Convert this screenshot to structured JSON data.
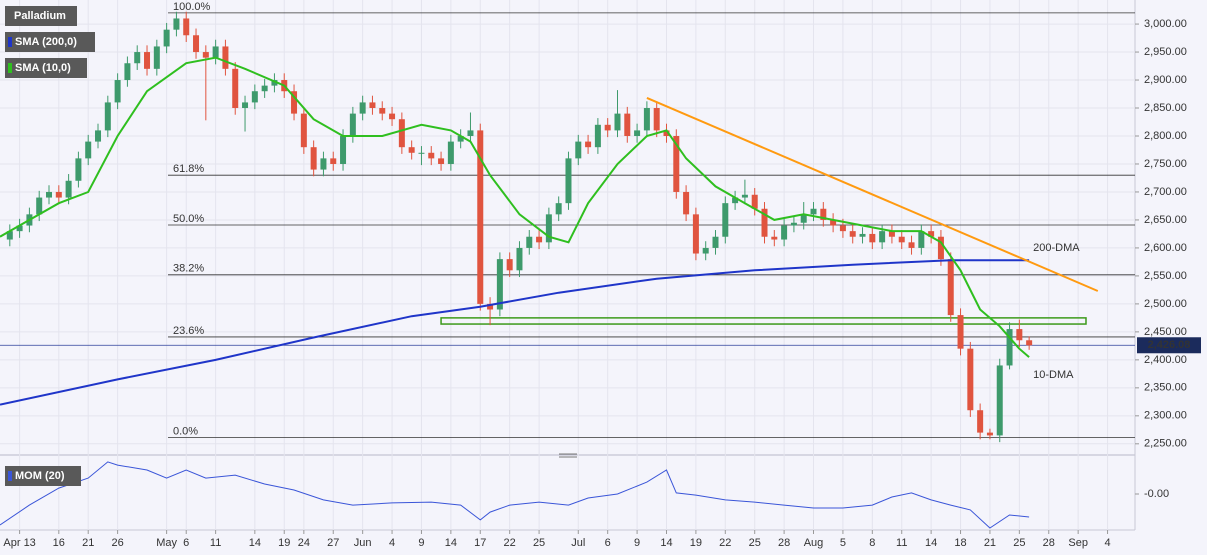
{
  "chart_data": {
    "type": "candlestick",
    "title": "Palladium",
    "xlim": [
      -2,
      113.8
    ],
    "ylim": [
      2230,
      3043
    ],
    "xticks": [
      {
        "value": 0,
        "label": "Apr 13"
      },
      {
        "value": 4,
        "label": "16"
      },
      {
        "value": 7,
        "label": "21"
      },
      {
        "value": 10,
        "label": "26"
      },
      {
        "value": 15,
        "label": "May"
      },
      {
        "value": 17,
        "label": "6"
      },
      {
        "value": 20,
        "label": "11"
      },
      {
        "value": 24,
        "label": "14"
      },
      {
        "value": 27,
        "label": "19"
      },
      {
        "value": 29,
        "label": "24"
      },
      {
        "value": 32,
        "label": "27"
      },
      {
        "value": 35,
        "label": "Jun"
      },
      {
        "value": 38,
        "label": "4"
      },
      {
        "value": 41,
        "label": "9"
      },
      {
        "value": 44,
        "label": "14"
      },
      {
        "value": 47,
        "label": "17"
      },
      {
        "value": 50,
        "label": "22"
      },
      {
        "value": 53,
        "label": "25"
      },
      {
        "value": 57,
        "label": "Jul"
      },
      {
        "value": 60,
        "label": "6"
      },
      {
        "value": 63,
        "label": "9"
      },
      {
        "value": 66,
        "label": "14"
      },
      {
        "value": 69,
        "label": "19"
      },
      {
        "value": 72,
        "label": "22"
      },
      {
        "value": 75,
        "label": "25"
      },
      {
        "value": 78,
        "label": "28"
      },
      {
        "value": 81,
        "label": "Aug"
      },
      {
        "value": 84,
        "label": "5"
      },
      {
        "value": 87,
        "label": "8"
      },
      {
        "value": 90,
        "label": "11"
      },
      {
        "value": 93,
        "label": "14"
      },
      {
        "value": 96,
        "label": "18"
      },
      {
        "value": 99,
        "label": "21"
      },
      {
        "value": 102,
        "label": "25"
      },
      {
        "value": 105,
        "label": "28"
      },
      {
        "value": 108,
        "label": "Sep"
      },
      {
        "value": 111,
        "label": "4"
      }
    ],
    "yticks": [
      {
        "value": 2250,
        "label": "2,250.00"
      },
      {
        "value": 2300,
        "label": "2,300.00"
      },
      {
        "value": 2350,
        "label": "2,350.00"
      },
      {
        "value": 2400,
        "label": "2,400.00"
      },
      {
        "value": 2450,
        "label": "2,450.00"
      },
      {
        "value": 2500,
        "label": "2,500.00"
      },
      {
        "value": 2550,
        "label": "2,550.00"
      },
      {
        "value": 2600,
        "label": "2,600.00"
      },
      {
        "value": 2650,
        "label": "2,650.00"
      },
      {
        "value": 2700,
        "label": "2,700.00"
      },
      {
        "value": 2750,
        "label": "2,750.00"
      },
      {
        "value": 2800,
        "label": "2,800.00"
      },
      {
        "value": 2850,
        "label": "2,850.00"
      },
      {
        "value": 2900,
        "label": "2,900.00"
      },
      {
        "value": 2950,
        "label": "2,950.00"
      },
      {
        "value": 3000,
        "label": "3,000.00"
      }
    ],
    "candles": {
      "up_color": "#3e9a6c",
      "down_color": "#e0543f",
      "x": [
        -1,
        0,
        1,
        2,
        3,
        4,
        5,
        6,
        7,
        8,
        9,
        10,
        11,
        12,
        13,
        14,
        15,
        16,
        17,
        18,
        19,
        20,
        21,
        22,
        23,
        24,
        25,
        26,
        27,
        28,
        29,
        30,
        31,
        32,
        33,
        34,
        35,
        36,
        37,
        38,
        39,
        40,
        41,
        42,
        43,
        44,
        45,
        46,
        47,
        48,
        49,
        50,
        51,
        52,
        53,
        54,
        55,
        56,
        57,
        58,
        59,
        60,
        61,
        62,
        63,
        64,
        65,
        66,
        67,
        68,
        69,
        70,
        71,
        72,
        73,
        74,
        75,
        76,
        77,
        78,
        79,
        80,
        81,
        82,
        83,
        84,
        85,
        86,
        87,
        88,
        89,
        90,
        91,
        92,
        93,
        94,
        95,
        96,
        97,
        98,
        99,
        100,
        101,
        102,
        103
      ],
      "ohlc": [
        [
          2615,
          2642,
          2603,
          2630
        ],
        [
          2630,
          2652,
          2618,
          2640
        ],
        [
          2640,
          2672,
          2628,
          2660
        ],
        [
          2660,
          2702,
          2648,
          2690
        ],
        [
          2690,
          2712,
          2678,
          2700
        ],
        [
          2700,
          2712,
          2678,
          2690
        ],
        [
          2690,
          2732,
          2678,
          2720
        ],
        [
          2720,
          2772,
          2708,
          2760
        ],
        [
          2760,
          2802,
          2748,
          2790
        ],
        [
          2790,
          2822,
          2778,
          2810
        ],
        [
          2810,
          2872,
          2798,
          2860
        ],
        [
          2860,
          2912,
          2848,
          2900
        ],
        [
          2900,
          2942,
          2888,
          2930
        ],
        [
          2930,
          2962,
          2918,
          2950
        ],
        [
          2950,
          2962,
          2908,
          2920
        ],
        [
          2920,
          2972,
          2908,
          2960
        ],
        [
          2960,
          3002,
          2948,
          2990
        ],
        [
          2990,
          3022,
          2978,
          3010
        ],
        [
          3010,
          3022,
          2968,
          2980
        ],
        [
          2980,
          2992,
          2938,
          2950
        ],
        [
          2950,
          2962,
          2828,
          2940
        ],
        [
          2940,
          2972,
          2928,
          2960
        ],
        [
          2960,
          2972,
          2908,
          2920
        ],
        [
          2920,
          2932,
          2838,
          2850
        ],
        [
          2850,
          2872,
          2808,
          2860
        ],
        [
          2860,
          2892,
          2848,
          2880
        ],
        [
          2880,
          2902,
          2868,
          2890
        ],
        [
          2890,
          2912,
          2878,
          2900
        ],
        [
          2900,
          2912,
          2868,
          2880
        ],
        [
          2880,
          2892,
          2828,
          2840
        ],
        [
          2840,
          2852,
          2768,
          2780
        ],
        [
          2780,
          2792,
          2728,
          2740
        ],
        [
          2740,
          2772,
          2728,
          2760
        ],
        [
          2760,
          2772,
          2738,
          2750
        ],
        [
          2750,
          2812,
          2738,
          2800
        ],
        [
          2800,
          2852,
          2788,
          2840
        ],
        [
          2840,
          2872,
          2828,
          2860
        ],
        [
          2860,
          2872,
          2838,
          2850
        ],
        [
          2850,
          2862,
          2828,
          2840
        ],
        [
          2840,
          2852,
          2818,
          2830
        ],
        [
          2830,
          2842,
          2768,
          2780
        ],
        [
          2780,
          2792,
          2758,
          2770
        ],
        [
          2770,
          2782,
          2748,
          2770
        ],
        [
          2770,
          2782,
          2748,
          2760
        ],
        [
          2760,
          2772,
          2738,
          2750
        ],
        [
          2750,
          2802,
          2738,
          2790
        ],
        [
          2790,
          2812,
          2778,
          2800
        ],
        [
          2800,
          2842,
          2788,
          2810
        ],
        [
          2810,
          2822,
          2488,
          2500
        ],
        [
          2500,
          2512,
          2462,
          2490
        ],
        [
          2490,
          2592,
          2478,
          2580
        ],
        [
          2580,
          2592,
          2548,
          2560
        ],
        [
          2560,
          2612,
          2548,
          2600
        ],
        [
          2600,
          2632,
          2588,
          2620
        ],
        [
          2620,
          2632,
          2598,
          2610
        ],
        [
          2610,
          2672,
          2598,
          2660
        ],
        [
          2660,
          2692,
          2648,
          2680
        ],
        [
          2680,
          2772,
          2668,
          2760
        ],
        [
          2760,
          2802,
          2748,
          2790
        ],
        [
          2790,
          2802,
          2768,
          2780
        ],
        [
          2780,
          2832,
          2768,
          2820
        ],
        [
          2820,
          2832,
          2798,
          2810
        ],
        [
          2810,
          2882,
          2798,
          2840
        ],
        [
          2840,
          2852,
          2788,
          2800
        ],
        [
          2800,
          2822,
          2788,
          2810
        ],
        [
          2810,
          2862,
          2798,
          2850
        ],
        [
          2850,
          2862,
          2798,
          2810
        ],
        [
          2810,
          2822,
          2788,
          2800
        ],
        [
          2800,
          2812,
          2688,
          2700
        ],
        [
          2700,
          2712,
          2648,
          2660
        ],
        [
          2660,
          2672,
          2578,
          2590
        ],
        [
          2590,
          2612,
          2578,
          2600
        ],
        [
          2600,
          2632,
          2588,
          2620
        ],
        [
          2620,
          2692,
          2608,
          2680
        ],
        [
          2680,
          2702,
          2668,
          2690
        ],
        [
          2690,
          2722,
          2678,
          2695
        ],
        [
          2695,
          2707,
          2658,
          2670
        ],
        [
          2670,
          2682,
          2608,
          2620
        ],
        [
          2620,
          2632,
          2603,
          2615
        ],
        [
          2615,
          2652,
          2603,
          2640
        ],
        [
          2640,
          2657,
          2628,
          2645
        ],
        [
          2645,
          2682,
          2633,
          2660
        ],
        [
          2660,
          2682,
          2648,
          2670
        ],
        [
          2670,
          2682,
          2638,
          2650
        ],
        [
          2650,
          2662,
          2628,
          2640
        ],
        [
          2640,
          2652,
          2618,
          2630
        ],
        [
          2630,
          2642,
          2608,
          2620
        ],
        [
          2620,
          2637,
          2608,
          2625
        ],
        [
          2625,
          2637,
          2598,
          2610
        ],
        [
          2610,
          2642,
          2598,
          2630
        ],
        [
          2630,
          2642,
          2608,
          2620
        ],
        [
          2620,
          2632,
          2598,
          2610
        ],
        [
          2610,
          2622,
          2588,
          2600
        ],
        [
          2600,
          2642,
          2588,
          2630
        ],
        [
          2630,
          2642,
          2608,
          2620
        ],
        [
          2620,
          2632,
          2568,
          2580
        ],
        [
          2580,
          2592,
          2468,
          2480
        ],
        [
          2480,
          2492,
          2408,
          2420
        ],
        [
          2420,
          2432,
          2298,
          2310
        ],
        [
          2310,
          2322,
          2258,
          2270
        ],
        [
          2270,
          2277,
          2258,
          2265
        ],
        [
          2265,
          2402,
          2253,
          2390
        ],
        [
          2390,
          2467,
          2383,
          2455
        ],
        [
          2455,
          2472,
          2423,
          2435
        ],
        [
          2435,
          2442,
          2418,
          2426
        ]
      ]
    },
    "series": [
      {
        "name": "SMA (200,0)",
        "label": "200-DMA",
        "color": "#1f35c9",
        "x": [
          -2,
          10,
          20,
          30,
          40,
          47,
          55,
          65,
          75,
          85,
          95,
          103
        ],
        "values": [
          2320,
          2365,
          2400,
          2440,
          2478,
          2495,
          2520,
          2545,
          2560,
          2570,
          2578,
          2578
        ]
      },
      {
        "name": "SMA (10,0)",
        "label": "10-DMA",
        "color": "#2fbf1f",
        "x": [
          -2,
          0,
          4,
          7,
          10,
          13,
          17,
          20,
          23,
          27,
          30,
          33,
          37,
          41,
          44,
          46,
          48,
          51,
          54,
          56,
          58,
          61,
          64,
          66,
          68,
          71,
          74,
          77,
          80,
          83,
          86,
          89,
          92,
          94,
          96,
          98,
          100,
          102,
          103
        ],
        "values": [
          2620,
          2640,
          2680,
          2700,
          2800,
          2880,
          2930,
          2940,
          2920,
          2890,
          2830,
          2800,
          2800,
          2820,
          2810,
          2790,
          2730,
          2660,
          2620,
          2610,
          2680,
          2750,
          2800,
          2810,
          2760,
          2710,
          2680,
          2650,
          2660,
          2650,
          2640,
          2630,
          2630,
          2610,
          2560,
          2490,
          2460,
          2420,
          2405
        ]
      }
    ],
    "trendline": {
      "color": "#ff9a10",
      "x": [
        64,
        110
      ],
      "values": [
        2868,
        2523
      ]
    },
    "fib": [
      {
        "label": "100.0%",
        "value": 3020
      },
      {
        "label": "61.8%",
        "value": 2730
      },
      {
        "label": "50.0%",
        "value": 2641
      },
      {
        "label": "38.2%",
        "value": 2552
      },
      {
        "label": "23.6%",
        "value": 2441
      },
      {
        "label": "0.0%",
        "value": 2261
      }
    ],
    "zone": {
      "color": "#3c9a1a",
      "x": [
        43,
        108.8
      ],
      "values": [
        2464,
        2475
      ]
    },
    "last_price": {
      "value": 2426.08,
      "label": "2,426.08"
    },
    "momentum": {
      "name": "MOM (20)",
      "color": "#3a55d8",
      "ylim": [
        -160,
        160
      ],
      "yticks": [
        {
          "value": 0,
          "label": "-0.00"
        }
      ],
      "x": [
        -2,
        1,
        4,
        7,
        9,
        10,
        13,
        15,
        17,
        19,
        22,
        25,
        28,
        31,
        34,
        38,
        42,
        45,
        47,
        48,
        50,
        53,
        56,
        58,
        61,
        64,
        66,
        67,
        69,
        72,
        75,
        78,
        81,
        84,
        87,
        89,
        91,
        93,
        95,
        97,
        99,
        101,
        103
      ],
      "values": [
        -146,
        -52,
        28,
        75,
        151,
        136,
        113,
        75,
        113,
        75,
        89,
        47,
        19,
        -28,
        -52,
        -42,
        -38,
        -52,
        -122,
        -85,
        -52,
        -38,
        -52,
        -19,
        0,
        56,
        113,
        5,
        -5,
        -28,
        -38,
        -52,
        -66,
        -66,
        -52,
        -14,
        5,
        -28,
        -52,
        -75,
        -160,
        -99,
        -108
      ]
    }
  }
}
